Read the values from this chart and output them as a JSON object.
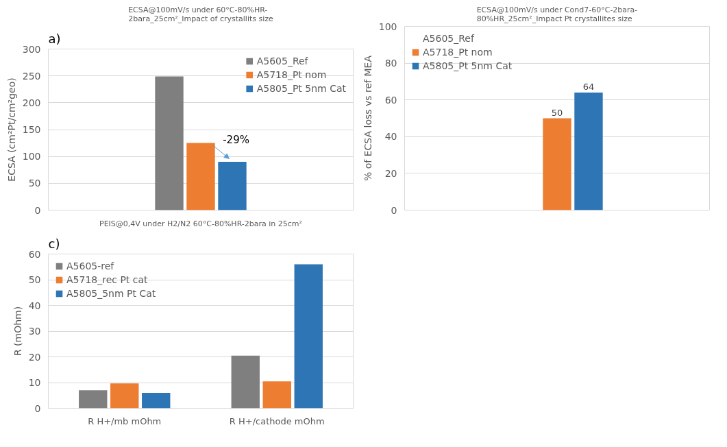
{
  "chart_data": [
    {
      "type": "bar",
      "title": "ECSA@100mV/s under 60°C-80%HR-\n2bara_25cm²_Impact of crystallits size",
      "ylabel": "ECSA (cm²Pt/cm²geo)",
      "categories": [
        null
      ],
      "series": [
        {
          "name": "A5605_Ref",
          "color": "#7f7f7f",
          "values": [
            249
          ]
        },
        {
          "name": "A5718_Pt nom",
          "color": "#ed7d31",
          "values": [
            125
          ]
        },
        {
          "name": "A5805_Pt 5nm Cat",
          "color": "#2e75b6",
          "values": [
            90
          ]
        }
      ],
      "ylim": [
        0,
        300
      ],
      "yticks": [
        0,
        50,
        100,
        150,
        200,
        250,
        300
      ],
      "grid": "y",
      "legend": "top right",
      "annotations": [
        "a)",
        {
          "text": "-29%",
          "y": 90
        }
      ]
    },
    {
      "type": "bar",
      "title": "ECSA@100mV/s under Cond7-60°C-2bara-\n80%HR_25cm²_Impact Pt crystallites size",
      "ylabel": "% of ECSA loss vs ref MEA",
      "categories": [
        null
      ],
      "series": [
        {
          "name": "A5605_Ref",
          "color": "#7f7f7f",
          "values": [
            null
          ]
        },
        {
          "name": "A5718_Pt nom",
          "color": "#ed7d31",
          "values": [
            50
          ]
        },
        {
          "name": "A5805_Pt 5nm Cat",
          "color": "#2e75b6",
          "values": [
            64
          ]
        }
      ],
      "ylim": [
        0,
        100
      ],
      "yticks": [
        0,
        20,
        40,
        60,
        80,
        100
      ],
      "grid": "y",
      "legend": "top left",
      "data_labels": true
    },
    {
      "type": "bar",
      "title": "PEIS@0,4V under H2/N2 60°C-80%HR-2bara in 25cm²",
      "ylabel": "R (mOhm)",
      "categories": [
        "R H+/mb mOhm",
        "R H+/cathode mOhm"
      ],
      "series": [
        {
          "name": "A5605-ref",
          "color": "#7f7f7f",
          "values": [
            7,
            20.5
          ]
        },
        {
          "name": "A5718_rec Pt cat",
          "color": "#ed7d31",
          "values": [
            9.7,
            10.5
          ]
        },
        {
          "name": "A5805_5nm Pt Cat",
          "color": "#2e75b6",
          "values": [
            6,
            56
          ]
        }
      ],
      "ylim": [
        0,
        60
      ],
      "yticks": [
        0,
        10,
        20,
        30,
        40,
        50,
        60
      ],
      "grid": "y",
      "legend": "top left",
      "annotations": [
        "c)"
      ]
    }
  ]
}
